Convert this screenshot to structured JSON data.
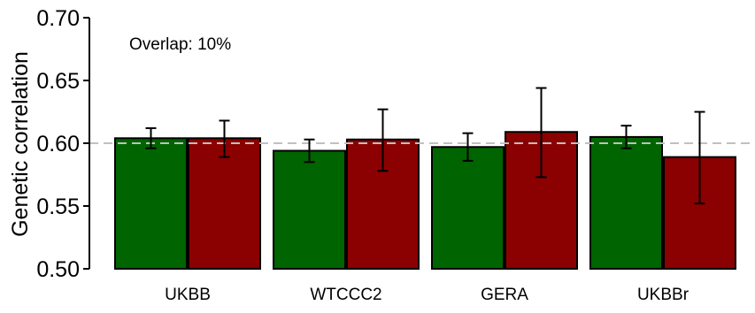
{
  "chart_data": {
    "type": "bar",
    "annotation": "Overlap: 10%",
    "ylabel": "Genetic correlation",
    "xlabel": "",
    "ylim": [
      0.5,
      0.7
    ],
    "yticks": [
      "0.50",
      "0.55",
      "0.60",
      "0.65",
      "0.70"
    ],
    "reference_line": 0.6,
    "categories": [
      "UKBB",
      "WTCCC2",
      "GERA",
      "UKBBr"
    ],
    "series": [
      {
        "color": "#006400",
        "values": [
          0.604,
          0.594,
          0.597,
          0.605
        ],
        "err_low": [
          0.596,
          0.585,
          0.586,
          0.596
        ],
        "err_high": [
          0.612,
          0.603,
          0.608,
          0.614
        ]
      },
      {
        "color": "#8b0000",
        "values": [
          0.604,
          0.603,
          0.609,
          0.589
        ],
        "err_low": [
          0.589,
          0.578,
          0.573,
          0.552
        ],
        "err_high": [
          0.618,
          0.627,
          0.644,
          0.625
        ]
      }
    ],
    "grid": false,
    "legend": "none"
  }
}
